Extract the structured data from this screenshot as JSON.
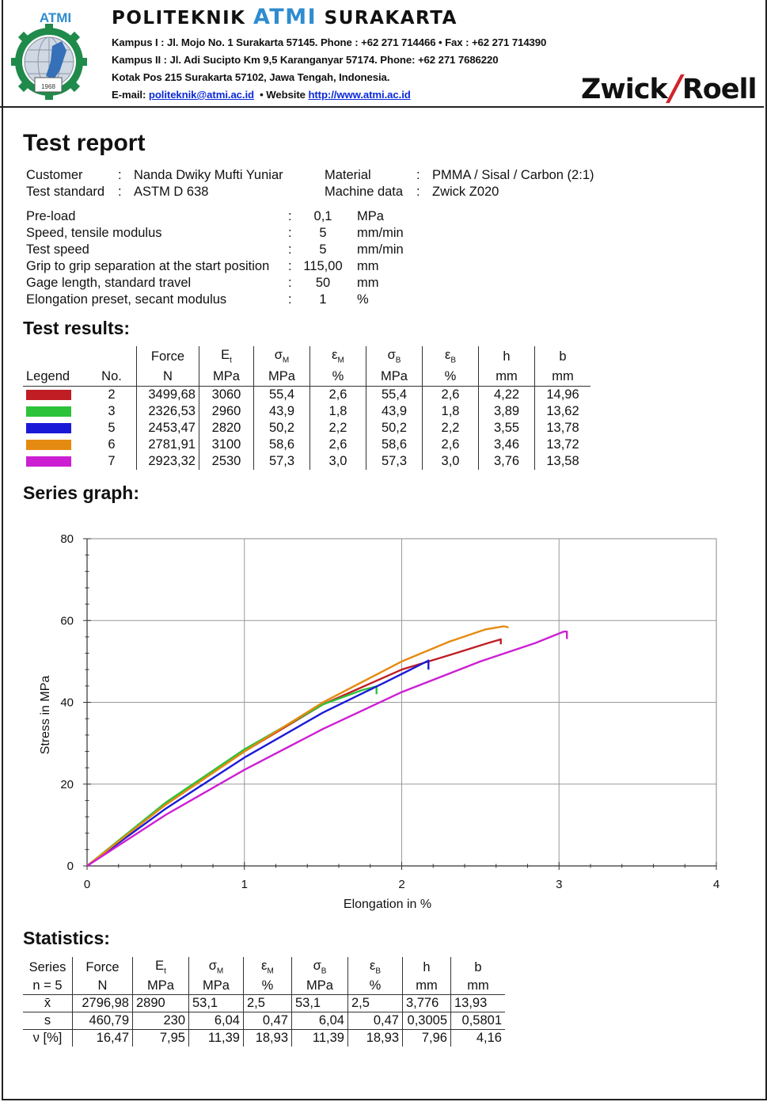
{
  "header": {
    "logo_text": "ATMI",
    "logo_year": "1968",
    "inst_prefix": "POLITEKNIK",
    "inst_atmi": "ATMI",
    "inst_suffix": "SURAKARTA",
    "address_line1": "Kampus I : Jl. Mojo No. 1 Surakarta 57145.  Phone : +62 271 714466  •  Fax : +62 271 714390",
    "address_line2": "Kampus II : Jl. Adi Sucipto Km 9,5 Karanganyar 57174.  Phone: +62 271 7686220",
    "address_line3": "Kotak Pos 215  Surakarta 57102, Jawa Tengah, Indonesia.",
    "email_label": "E-mail:",
    "email": "politeknik@atmi.ac.id",
    "website_label": "•  Website",
    "website": "http://www.atmi.ac.id",
    "brand_left": "Zwick",
    "brand_slash": "/",
    "brand_right": "Roell"
  },
  "title": "Test report",
  "info": {
    "customer_label": "Customer",
    "customer": "Nanda Dwiky Mufti Yuniar",
    "standard_label": "Test standard",
    "standard": "ASTM D 638",
    "material_label": "Material",
    "material": "PMMA / Sisal / Carbon (2:1)",
    "machine_label": "Machine data",
    "machine": "Zwick Z020"
  },
  "params": [
    {
      "label": "Pre-load",
      "value": "0,1",
      "unit": "MPa"
    },
    {
      "label": "Speed, tensile modulus",
      "value": "5",
      "unit": "mm/min"
    },
    {
      "label": "Test speed",
      "value": "5",
      "unit": "mm/min"
    },
    {
      "label": "Grip to grip separation at the start position",
      "value": "115,00",
      "unit": "mm"
    },
    {
      "label": "Gage length, standard travel",
      "value": "50",
      "unit": "mm"
    },
    {
      "label": "Elongation preset, secant modulus",
      "value": "1",
      "unit": "%"
    }
  ],
  "results": {
    "heading": "Test results:",
    "headers_top": [
      "",
      "",
      "Force",
      "E",
      "σ",
      "ε",
      "σ",
      "ε",
      "h",
      "b"
    ],
    "subs": [
      "",
      "",
      "",
      "t",
      "M",
      "M",
      "B",
      "B",
      "",
      ""
    ],
    "headers_units": [
      "Legend",
      "No.",
      "N",
      "MPa",
      "MPa",
      "%",
      "MPa",
      "%",
      "mm",
      "mm"
    ],
    "rows": [
      {
        "color": "#bf1e24",
        "no": "2",
        "force": "3499,68",
        "et": "3060",
        "sm": "55,4",
        "em": "2,6",
        "sb": "55,4",
        "eb": "2,6",
        "h": "4,22",
        "b": "14,96"
      },
      {
        "color": "#2cc23a",
        "no": "3",
        "force": "2326,53",
        "et": "2960",
        "sm": "43,9",
        "em": "1,8",
        "sb": "43,9",
        "eb": "1,8",
        "h": "3,89",
        "b": "13,62"
      },
      {
        "color": "#1a1ad6",
        "no": "5",
        "force": "2453,47",
        "et": "2820",
        "sm": "50,2",
        "em": "2,2",
        "sb": "50,2",
        "eb": "2,2",
        "h": "3,55",
        "b": "13,78"
      },
      {
        "color": "#e58a10",
        "no": "6",
        "force": "2781,91",
        "et": "3100",
        "sm": "58,6",
        "em": "2,6",
        "sb": "58,6",
        "eb": "2,6",
        "h": "3,46",
        "b": "13,72"
      },
      {
        "color": "#cc1fd4",
        "no": "7",
        "force": "2923,32",
        "et": "2530",
        "sm": "57,3",
        "em": "3,0",
        "sb": "57,3",
        "eb": "3,0",
        "h": "3,76",
        "b": "13,58"
      }
    ]
  },
  "graph_heading": "Series graph:",
  "chart_data": {
    "type": "line",
    "xlabel": "Elongation in %",
    "ylabel": "Stress in MPa",
    "xlim": [
      0,
      4
    ],
    "ylim": [
      0,
      80
    ],
    "xticks": [
      "0",
      "1",
      "2",
      "3",
      "4"
    ],
    "yticks": [
      "0",
      "20",
      "40",
      "60",
      "80"
    ],
    "grid": true,
    "series": [
      {
        "color": "#bf1e24",
        "x": [
          0,
          0.5,
          1.0,
          1.5,
          2.0,
          2.3,
          2.55,
          2.63,
          2.63
        ],
        "y": [
          0,
          15,
          28,
          39.5,
          48,
          51.5,
          54.5,
          55.4,
          54.2
        ]
      },
      {
        "color": "#2cc23a",
        "x": [
          0,
          0.5,
          1.0,
          1.5,
          1.75,
          1.84,
          1.84
        ],
        "y": [
          0,
          15.5,
          28.5,
          39.5,
          43,
          43.9,
          42
        ]
      },
      {
        "color": "#1a1ad6",
        "x": [
          0,
          0.5,
          1.0,
          1.5,
          1.9,
          2.17,
          2.17
        ],
        "y": [
          0,
          14,
          26.5,
          37.5,
          45,
          50.2,
          48
        ]
      },
      {
        "color": "#e58a10",
        "x": [
          0,
          0.5,
          1.0,
          1.5,
          2.0,
          2.3,
          2.53,
          2.65,
          2.68
        ],
        "y": [
          0,
          15,
          28,
          40,
          50,
          54.8,
          57.8,
          58.6,
          58.3
        ]
      },
      {
        "color": "#cc1fd4",
        "x": [
          0,
          0.5,
          1.0,
          1.5,
          2.0,
          2.5,
          2.85,
          3.03,
          3.05,
          3.05
        ],
        "y": [
          0,
          12.5,
          23.5,
          33.5,
          42.5,
          50,
          54.5,
          57.3,
          57.3,
          55.5
        ]
      }
    ]
  },
  "stats": {
    "heading": "Statistics:",
    "headers_top": [
      "Series",
      "Force",
      "E",
      "σ",
      "ε",
      "σ",
      "ε",
      "h",
      "b"
    ],
    "subs": [
      "",
      "",
      "t",
      "M",
      "M",
      "B",
      "B",
      "",
      ""
    ],
    "headers_units": [
      "n = 5",
      "N",
      "MPa",
      "MPa",
      "%",
      "MPa",
      "%",
      "mm",
      "mm"
    ],
    "rows": [
      {
        "label": "x̄",
        "force": "2796,98",
        "et": "2890",
        "sm": "53,1",
        "em": "2,5",
        "sb": "53,1",
        "eb": "2,5",
        "h": "3,776",
        "b": "13,93"
      },
      {
        "label": "s",
        "force": "460,79",
        "et": "230",
        "sm": "6,04",
        "em": "0,47",
        "sb": "6,04",
        "eb": "0,47",
        "h": "0,3005",
        "b": "0,5801"
      },
      {
        "label": "ν [%]",
        "force": "16,47",
        "et": "7,95",
        "sm": "11,39",
        "em": "18,93",
        "sb": "11,39",
        "eb": "18,93",
        "h": "7,96",
        "b": "4,16"
      }
    ]
  }
}
